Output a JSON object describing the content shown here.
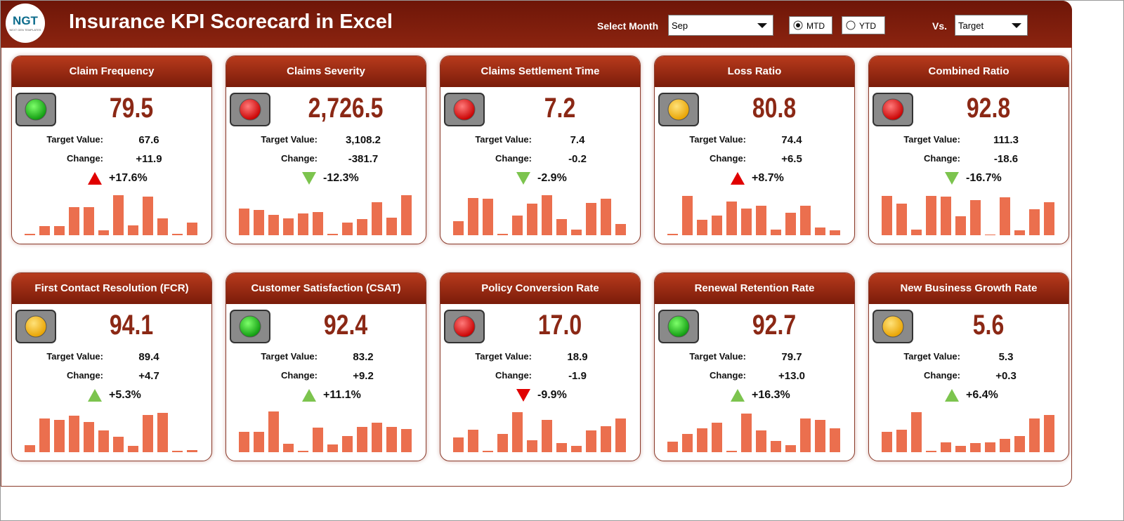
{
  "header": {
    "logo": "NGT",
    "logo_sub": "NEXT GEN TEMPLATES",
    "title": "Insurance KPI Scorecard in Excel",
    "month_label": "Select Month",
    "month": "Sep",
    "mtd": "MTD",
    "ytd": "YTD",
    "mode": "mtd",
    "vs_label": "Vs.",
    "vs": "Target"
  },
  "labels": {
    "target": "Target Value:",
    "change": "Change:"
  },
  "cards": [
    {
      "title": "Claim Frequency",
      "value": "79.5",
      "target": "67.6",
      "change": "+11.9",
      "pct": "+17.6%",
      "light": "green",
      "arrow": "up",
      "arrow_color": "red",
      "bars": [
        2,
        13,
        13,
        40,
        40,
        7,
        57,
        14,
        55,
        24,
        2,
        18
      ]
    },
    {
      "title": "Claims Severity",
      "value": "2,726.5",
      "target": "3,108.2",
      "change": "-381.7",
      "pct": "-12.3%",
      "light": "red",
      "arrow": "down",
      "arrow_color": "green",
      "bars": [
        38,
        36,
        29,
        24,
        31,
        33,
        2,
        18,
        23,
        47,
        25,
        57
      ]
    },
    {
      "title": "Claims Settlement Time",
      "value": "7.2",
      "target": "7.4",
      "change": "-0.2",
      "pct": "-2.9%",
      "light": "red",
      "arrow": "down",
      "arrow_color": "green",
      "bars": [
        20,
        53,
        52,
        2,
        28,
        45,
        57,
        23,
        8,
        46,
        52,
        16
      ]
    },
    {
      "title": "Loss Ratio",
      "value": "80.8",
      "target": "74.4",
      "change": "+6.5",
      "pct": "+8.7%",
      "light": "yellow",
      "arrow": "up",
      "arrow_color": "red",
      "bars": [
        2,
        56,
        22,
        28,
        48,
        38,
        42,
        8,
        32,
        42,
        11,
        7
      ]
    },
    {
      "title": "Combined Ratio",
      "value": "92.8",
      "target": "111.3",
      "change": "-18.6",
      "pct": "-16.7%",
      "light": "red",
      "arrow": "down",
      "arrow_color": "green",
      "bars": [
        56,
        45,
        8,
        56,
        55,
        27,
        50,
        1,
        54,
        7,
        37,
        47
      ]
    },
    {
      "title": "First Contact Resolution (FCR)",
      "value": "94.1",
      "target": "89.4",
      "change": "+4.7",
      "pct": "+5.3%",
      "light": "yellow",
      "arrow": "up",
      "arrow_color": "green",
      "bars": [
        10,
        48,
        46,
        52,
        43,
        31,
        22,
        9,
        53,
        56,
        2,
        3
      ]
    },
    {
      "title": "Customer Satisfaction (CSAT)",
      "value": "92.4",
      "target": "83.2",
      "change": "+9.2",
      "pct": "+11.1%",
      "light": "green",
      "arrow": "up",
      "arrow_color": "green",
      "bars": [
        29,
        29,
        58,
        12,
        2,
        35,
        11,
        23,
        36,
        42,
        36,
        33
      ]
    },
    {
      "title": "Policy Conversion Rate",
      "value": "17.0",
      "target": "18.9",
      "change": "-1.9",
      "pct": "-9.9%",
      "light": "red",
      "arrow": "down",
      "arrow_color": "red",
      "bars": [
        21,
        32,
        2,
        26,
        57,
        17,
        46,
        13,
        9,
        31,
        37,
        48
      ]
    },
    {
      "title": "Renewal Retention Rate",
      "value": "92.7",
      "target": "79.7",
      "change": "+13.0",
      "pct": "+16.3%",
      "light": "green",
      "arrow": "up",
      "arrow_color": "green",
      "bars": [
        15,
        26,
        34,
        42,
        2,
        55,
        31,
        16,
        10,
        48,
        46,
        34
      ]
    },
    {
      "title": "New Business Growth Rate",
      "value": "5.6",
      "target": "5.3",
      "change": "+0.3",
      "pct": "+6.4%",
      "light": "yellow",
      "arrow": "up",
      "arrow_color": "green",
      "bars": [
        29,
        32,
        57,
        2,
        14,
        9,
        13,
        14,
        19,
        23,
        48,
        53
      ]
    }
  ]
}
